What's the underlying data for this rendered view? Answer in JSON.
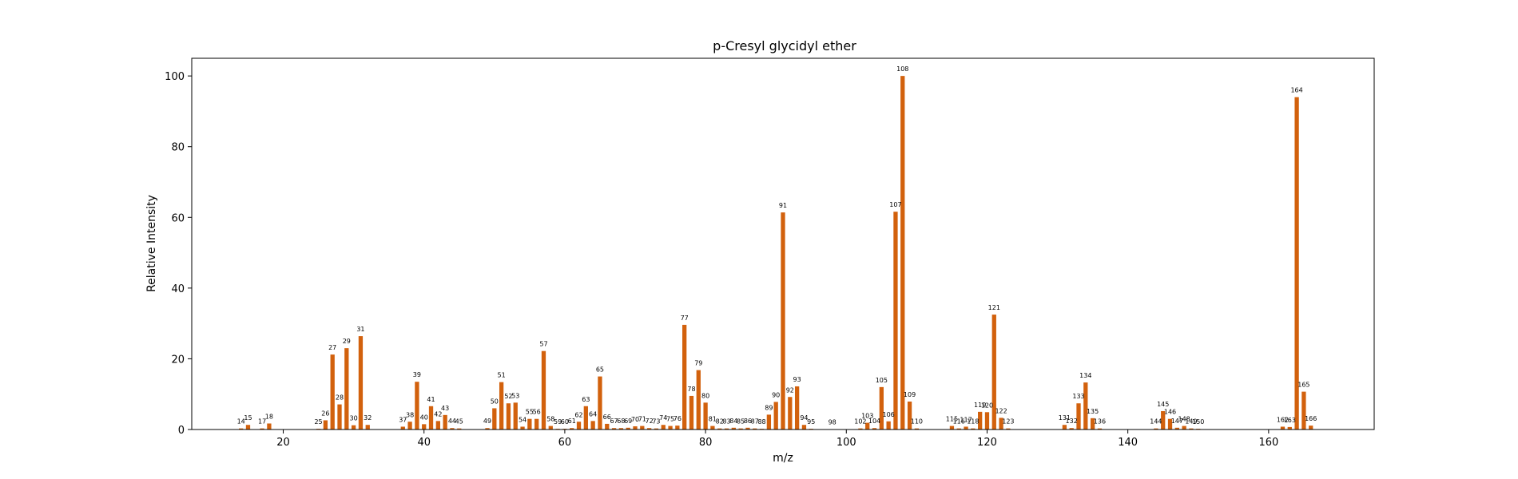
{
  "chart_data": {
    "type": "bar",
    "title": "p-Cresyl glycidyl ether",
    "xlabel": "m/z",
    "ylabel": "Relative Intensity",
    "xlim": [
      7,
      175
    ],
    "ylim": [
      0,
      105
    ],
    "xticks": [
      20,
      40,
      60,
      80,
      100,
      120,
      140,
      160
    ],
    "yticks": [
      0,
      20,
      40,
      60,
      80,
      100
    ],
    "bar_color": "#d2610d",
    "x": [
      14,
      15,
      17,
      18,
      25,
      26,
      27,
      28,
      29,
      30,
      31,
      32,
      37,
      38,
      39,
      40,
      41,
      42,
      43,
      44,
      45,
      49,
      50,
      51,
      52,
      53,
      54,
      55,
      56,
      57,
      58,
      59,
      60,
      61,
      62,
      63,
      64,
      65,
      66,
      67,
      68,
      69,
      70,
      71,
      72,
      73,
      74,
      75,
      76,
      77,
      78,
      79,
      80,
      81,
      82,
      83,
      84,
      85,
      86,
      87,
      88,
      89,
      90,
      91,
      92,
      93,
      94,
      95,
      98,
      102,
      103,
      104,
      105,
      106,
      107,
      108,
      109,
      110,
      115,
      116,
      117,
      118,
      119,
      120,
      121,
      122,
      123,
      131,
      132,
      133,
      134,
      135,
      136,
      144,
      145,
      146,
      147,
      148,
      149,
      150,
      162,
      163,
      164,
      165,
      166
    ],
    "y": [
      0.3,
      1.3,
      0.3,
      1.7,
      0.2,
      2.6,
      21.2,
      7.1,
      23.0,
      1.2,
      26.4,
      1.3,
      0.8,
      2.2,
      13.5,
      1.5,
      6.6,
      2.4,
      4.1,
      0.4,
      0.3,
      0.4,
      6.0,
      13.4,
      7.4,
      7.6,
      0.8,
      3.0,
      3.0,
      22.2,
      1.0,
      0.2,
      0.2,
      0.4,
      2.2,
      6.6,
      2.4,
      15.0,
      1.6,
      0.4,
      0.4,
      0.5,
      0.9,
      1.0,
      0.4,
      0.3,
      1.3,
      1.0,
      1.1,
      29.6,
      9.5,
      16.8,
      7.6,
      1.0,
      0.3,
      0.3,
      0.5,
      0.3,
      0.5,
      0.3,
      0.2,
      4.2,
      7.8,
      61.4,
      9.2,
      12.2,
      1.3,
      0.2,
      0.1,
      0.3,
      1.9,
      0.4,
      12.0,
      2.3,
      61.6,
      100.0,
      7.9,
      0.3,
      1.0,
      0.3,
      0.8,
      0.3,
      5.0,
      4.9,
      32.5,
      3.3,
      0.3,
      1.3,
      0.4,
      7.4,
      13.3,
      3.2,
      0.3,
      0.3,
      5.2,
      3.0,
      0.5,
      1.0,
      0.3,
      0.2,
      0.8,
      0.7,
      94.0,
      10.7,
      1.1
    ],
    "labels": [
      "14",
      "15",
      "17",
      "18",
      "25",
      "26",
      "27",
      "28",
      "29",
      "30",
      "31",
      "32",
      "37",
      "38",
      "39",
      "40",
      "41",
      "42",
      "43",
      "44",
      "45",
      "49",
      "50",
      "51",
      "52",
      "53",
      "54",
      "55",
      "56",
      "57",
      "58",
      "59",
      "60",
      "61",
      "62",
      "63",
      "64",
      "65",
      "66",
      "67",
      "68",
      "69",
      "70",
      "71",
      "72",
      "73",
      "74",
      "75",
      "76",
      "77",
      "78",
      "79",
      "80",
      "81",
      "82",
      "83",
      "84",
      "85",
      "86",
      "87",
      "88",
      "89",
      "90",
      "91",
      "92",
      "93",
      "94",
      "95",
      "98",
      "102",
      "103",
      "104",
      "105",
      "106",
      "107",
      "108",
      "109",
      "110",
      "115",
      "116",
      "117",
      "118",
      "119",
      "120",
      "121",
      "122",
      "123",
      "131",
      "132",
      "133",
      "134",
      "135",
      "136",
      "144",
      "145",
      "146",
      "147",
      "148",
      "149",
      "150",
      "162",
      "163",
      "164",
      "165",
      "166"
    ],
    "grid": false,
    "legend": "none"
  }
}
